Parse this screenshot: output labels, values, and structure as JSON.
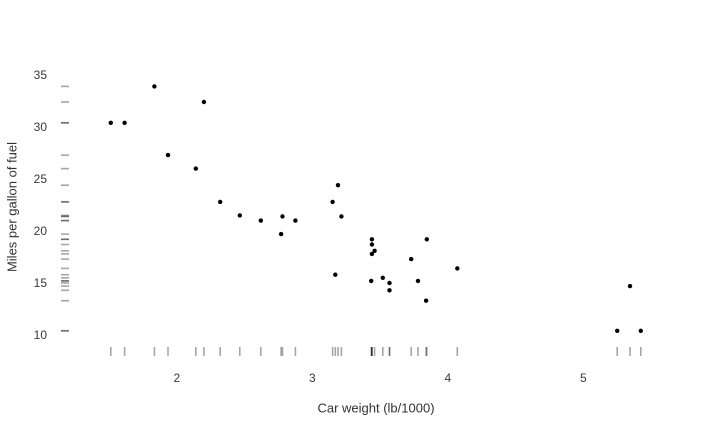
{
  "figure": {
    "background": "#ffffff",
    "text_color": "#383838"
  },
  "chart_data": {
    "type": "scatter",
    "title": "",
    "xlabel": "Car weight (lb/1000)",
    "ylabel": "Miles per gallon of fuel",
    "x_ticks": [
      2,
      3,
      4,
      5
    ],
    "y_ticks": [
      10,
      15,
      20,
      25,
      30,
      35
    ],
    "xlim": [
      1.15,
      5.85
    ],
    "ylim": [
      8,
      36.5
    ],
    "grid": false,
    "legend": false,
    "marginal_rug": {
      "x": true,
      "y": true
    },
    "marker": {
      "color": "#000000",
      "radius_px": 2.2
    },
    "rug_color": "rgba(0,0,0,0.35)",
    "points": [
      {
        "x": 2.62,
        "y": 21.0
      },
      {
        "x": 2.875,
        "y": 21.0
      },
      {
        "x": 2.32,
        "y": 22.8
      },
      {
        "x": 3.215,
        "y": 21.4
      },
      {
        "x": 3.44,
        "y": 18.7
      },
      {
        "x": 3.46,
        "y": 18.1
      },
      {
        "x": 3.57,
        "y": 14.3
      },
      {
        "x": 3.19,
        "y": 24.4
      },
      {
        "x": 3.15,
        "y": 22.8
      },
      {
        "x": 3.44,
        "y": 19.2
      },
      {
        "x": 3.44,
        "y": 17.8
      },
      {
        "x": 4.07,
        "y": 16.4
      },
      {
        "x": 3.73,
        "y": 17.3
      },
      {
        "x": 3.78,
        "y": 15.2
      },
      {
        "x": 5.25,
        "y": 10.4
      },
      {
        "x": 5.424,
        "y": 10.4
      },
      {
        "x": 5.345,
        "y": 14.7
      },
      {
        "x": 2.2,
        "y": 32.4
      },
      {
        "x": 1.615,
        "y": 30.4
      },
      {
        "x": 1.835,
        "y": 33.9
      },
      {
        "x": 2.465,
        "y": 21.5
      },
      {
        "x": 3.52,
        "y": 15.5
      },
      {
        "x": 3.435,
        "y": 15.2
      },
      {
        "x": 3.84,
        "y": 13.3
      },
      {
        "x": 3.845,
        "y": 19.2
      },
      {
        "x": 1.935,
        "y": 27.3
      },
      {
        "x": 2.14,
        "y": 26.0
      },
      {
        "x": 1.513,
        "y": 30.4
      },
      {
        "x": 3.17,
        "y": 15.8
      },
      {
        "x": 2.77,
        "y": 19.7
      },
      {
        "x": 3.57,
        "y": 15.0
      },
      {
        "x": 2.78,
        "y": 21.4
      }
    ]
  }
}
